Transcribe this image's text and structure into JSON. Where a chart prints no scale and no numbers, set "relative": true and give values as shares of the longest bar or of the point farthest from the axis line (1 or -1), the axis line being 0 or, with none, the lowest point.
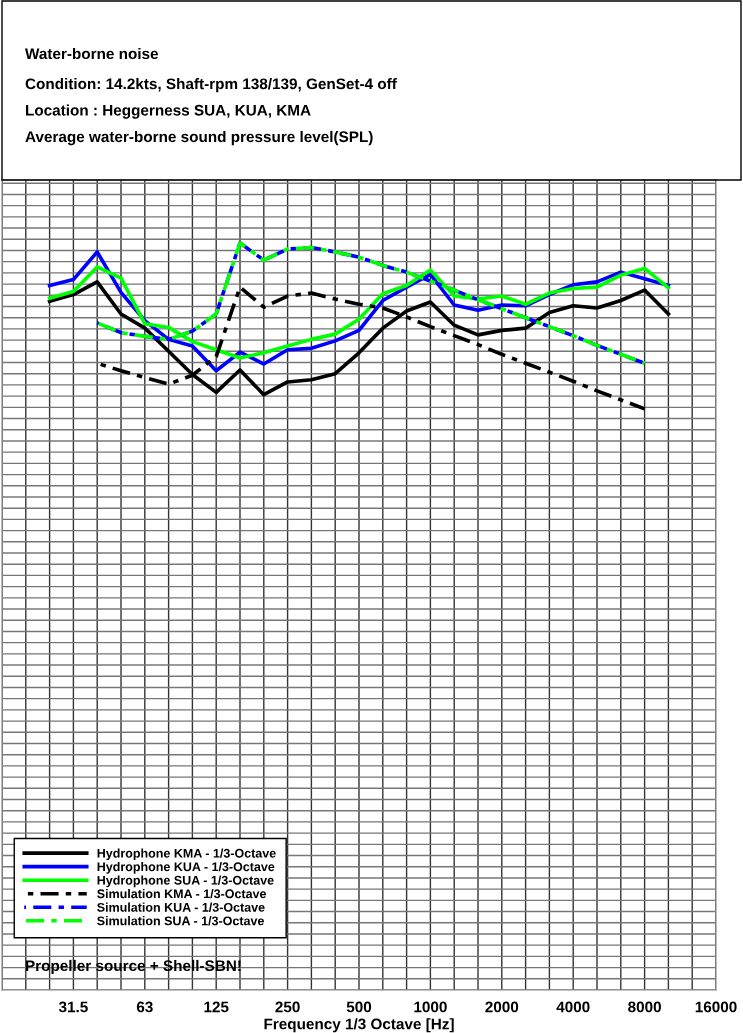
{
  "chart_data": {
    "type": "line",
    "title": "Water-borne noise",
    "subtitle": "Condition: 14.2kts, Shaft-rpm 138/139, GenSet-4 off\nLocation : Heggerness SUA, KUA, KMA\nAverage water-borne sound pressure level(SPL)",
    "xlabel": "Frequency 1/3 Octave [Hz]",
    "annotations": [
      "Propeller source + Shell-SBN!"
    ],
    "categories": [
      null,
      null,
      null,
      "31.5",
      null,
      null,
      "63",
      null,
      null,
      "125",
      null,
      null,
      "250",
      null,
      null,
      "500",
      null,
      null,
      "1000",
      null,
      null,
      "2000",
      null,
      null,
      "4000",
      null,
      null,
      "8000",
      null,
      null,
      "16000"
    ],
    "relative": true,
    "grid": true,
    "legend": "bottom left",
    "series": [
      {
        "name": "Hydrophone KMA - 1/3-Octave",
        "color": "#000000",
        "line_style": "solid",
        "values": [
          null,
          null,
          0.922,
          0.931,
          0.948,
          0.905,
          0.886,
          0.855,
          0.824,
          0.8,
          0.83,
          0.797,
          0.814,
          0.817,
          0.825,
          0.853,
          0.886,
          0.909,
          0.921,
          0.89,
          0.877,
          0.883,
          0.886,
          0.907,
          0.916,
          0.913,
          0.923,
          0.937,
          0.905,
          null,
          null
        ]
      },
      {
        "name": "Hydrophone KUA - 1/3-Octave",
        "color": "#0000ff",
        "line_style": "solid",
        "values": [
          null,
          null,
          0.943,
          0.951,
          0.988,
          0.934,
          0.896,
          0.871,
          0.862,
          0.829,
          0.854,
          0.838,
          0.857,
          0.859,
          0.869,
          0.883,
          0.923,
          0.941,
          0.958,
          0.917,
          0.91,
          0.917,
          0.916,
          0.931,
          0.944,
          0.948,
          0.961,
          0.952,
          0.943,
          null,
          null
        ]
      },
      {
        "name": "Hydrophone SUA - 1/3-Octave",
        "color": "#00ff00",
        "line_style": "solid",
        "values": [
          null,
          null,
          0.926,
          0.935,
          0.968,
          0.953,
          0.892,
          0.887,
          0.868,
          0.857,
          0.846,
          0.853,
          0.862,
          0.871,
          0.878,
          0.898,
          0.932,
          0.943,
          0.964,
          0.929,
          0.925,
          0.929,
          0.918,
          0.933,
          0.939,
          0.941,
          0.957,
          0.966,
          0.94,
          null,
          null
        ]
      },
      {
        "name": "Simulation KMA - 1/3-Octave",
        "color": "#000000",
        "line_style": "dashdot",
        "values": [
          null,
          null,
          null,
          null,
          0.839,
          0.829,
          0.82,
          0.811,
          0.823,
          0.848,
          0.941,
          0.914,
          0.929,
          0.933,
          0.925,
          0.918,
          0.913,
          0.901,
          0.888,
          0.876,
          0.864,
          0.851,
          0.839,
          0.827,
          0.815,
          0.802,
          0.79,
          0.778,
          null,
          null,
          null
        ]
      },
      {
        "name": "Simulation KUA - 1/3-Octave",
        "color": "#0000ff",
        "line_style": "dashdot",
        "values": [
          null,
          null,
          null,
          null,
          0.893,
          0.88,
          0.875,
          0.871,
          0.882,
          0.905,
          1,
          0.977,
          0.992,
          0.994,
          0.988,
          0.981,
          0.97,
          0.961,
          0.949,
          0.937,
          0.924,
          0.912,
          0.9,
          0.888,
          0.876,
          0.863,
          0.851,
          0.839,
          null,
          null,
          null
        ]
      },
      {
        "name": "Simulation SUA - 1/3-Octave",
        "color": "#00ff00",
        "line_style": "dashdot",
        "values": [
          null,
          null,
          null,
          null,
          0.893,
          0.88,
          0.875,
          0.871,
          0.882,
          0.905,
          1,
          0.977,
          0.992,
          0.994,
          0.988,
          0.981,
          0.97,
          0.961,
          0.949,
          0.937,
          0.924,
          0.912,
          0.9,
          0.888,
          0.876,
          0.863,
          0.851,
          0.839,
          null,
          null,
          null
        ]
      }
    ]
  }
}
